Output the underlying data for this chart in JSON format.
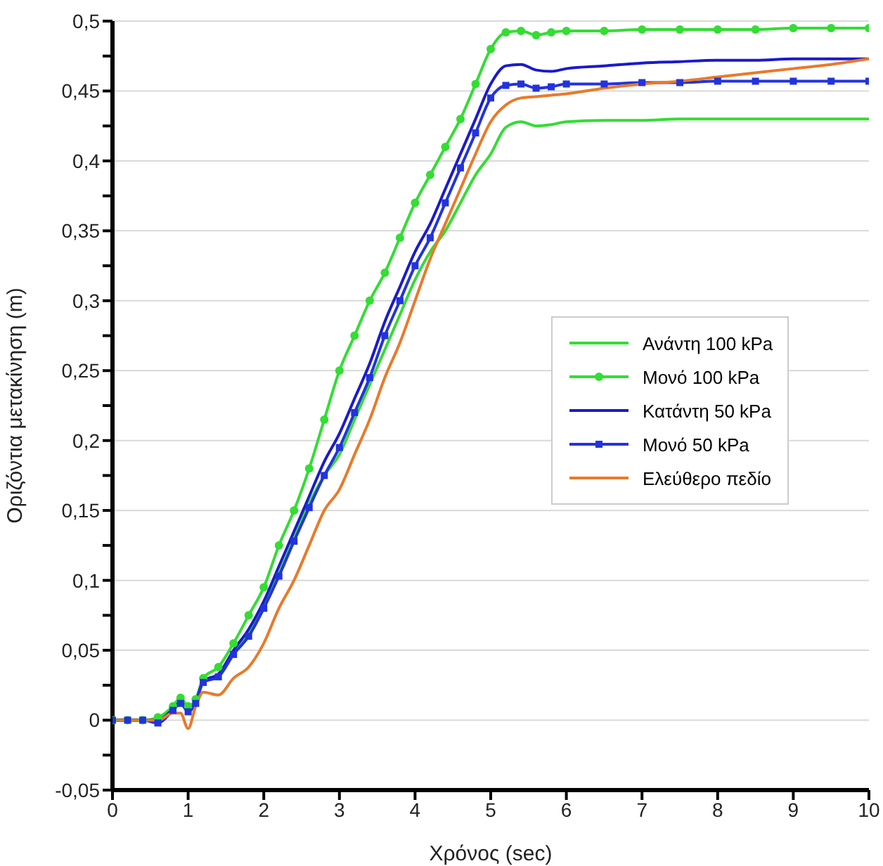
{
  "chart_data": {
    "type": "line",
    "xlabel": "Χρόνος (sec)",
    "ylabel": "Οριζόντια μετακίνηση (m)",
    "x": [
      0,
      0.2,
      0.4,
      0.6,
      0.8,
      0.9,
      1.0,
      1.1,
      1.2,
      1.4,
      1.6,
      1.8,
      2.0,
      2.2,
      2.4,
      2.6,
      2.8,
      3.0,
      3.2,
      3.4,
      3.6,
      3.8,
      4.0,
      4.2,
      4.4,
      4.6,
      4.8,
      5.0,
      5.2,
      5.4,
      5.6,
      5.8,
      6.0,
      6.5,
      7,
      7.5,
      8,
      8.5,
      9,
      9.5,
      10
    ],
    "series": [
      {
        "name": "Ανάντη 100 kPa",
        "color": "#33dd33",
        "marker": "none",
        "values": [
          0,
          0,
          0,
          0.001,
          0.009,
          0.013,
          0.007,
          0.013,
          0.028,
          0.033,
          0.048,
          0.063,
          0.082,
          0.105,
          0.13,
          0.155,
          0.175,
          0.19,
          0.215,
          0.24,
          0.265,
          0.29,
          0.315,
          0.335,
          0.35,
          0.37,
          0.39,
          0.405,
          0.424,
          0.428,
          0.425,
          0.426,
          0.428,
          0.429,
          0.429,
          0.43,
          0.43,
          0.43,
          0.43,
          0.43,
          0.43
        ]
      },
      {
        "name": "Μονό 100 kPa",
        "color": "#33dd33",
        "marker": "circle",
        "values": [
          0,
          0,
          0,
          0.002,
          0.01,
          0.016,
          0.01,
          0.015,
          0.03,
          0.038,
          0.055,
          0.075,
          0.095,
          0.125,
          0.15,
          0.18,
          0.215,
          0.25,
          0.275,
          0.3,
          0.32,
          0.345,
          0.37,
          0.39,
          0.41,
          0.43,
          0.455,
          0.48,
          0.492,
          0.493,
          0.49,
          0.492,
          0.493,
          0.493,
          0.494,
          0.494,
          0.494,
          0.494,
          0.495,
          0.495,
          0.495
        ]
      },
      {
        "name": "Κατάντη 50 kPa",
        "color": "#1a1acc",
        "marker": "none",
        "values": [
          0,
          0,
          0,
          0,
          0.008,
          0.013,
          0.008,
          0.013,
          0.028,
          0.033,
          0.05,
          0.065,
          0.085,
          0.11,
          0.135,
          0.16,
          0.185,
          0.205,
          0.23,
          0.255,
          0.285,
          0.31,
          0.335,
          0.355,
          0.38,
          0.405,
          0.43,
          0.455,
          0.468,
          0.469,
          0.465,
          0.464,
          0.466,
          0.468,
          0.47,
          0.471,
          0.472,
          0.472,
          0.473,
          0.473,
          0.473
        ]
      },
      {
        "name": "Μονό 50 kPa",
        "color": "#2233dd",
        "marker": "square",
        "values": [
          0,
          0,
          0,
          -0.002,
          0.007,
          0.012,
          0.006,
          0.012,
          0.027,
          0.031,
          0.047,
          0.06,
          0.08,
          0.103,
          0.128,
          0.152,
          0.175,
          0.195,
          0.22,
          0.245,
          0.275,
          0.3,
          0.325,
          0.345,
          0.37,
          0.395,
          0.42,
          0.445,
          0.454,
          0.455,
          0.452,
          0.453,
          0.455,
          0.455,
          0.456,
          0.456,
          0.457,
          0.457,
          0.457,
          0.457,
          0.457
        ]
      },
      {
        "name": "Ελεύθερο πεδίο",
        "color": "#e87a2a",
        "marker": "none",
        "values": [
          0,
          0,
          0,
          0,
          0.005,
          0.005,
          -0.006,
          0.01,
          0.02,
          0.018,
          0.03,
          0.038,
          0.055,
          0.08,
          0.1,
          0.125,
          0.15,
          0.165,
          0.19,
          0.215,
          0.245,
          0.27,
          0.3,
          0.33,
          0.355,
          0.38,
          0.405,
          0.428,
          0.44,
          0.445,
          0.446,
          0.447,
          0.448,
          0.452,
          0.455,
          0.457,
          0.46,
          0.463,
          0.466,
          0.469,
          0.473
        ]
      }
    ],
    "xlim": [
      0,
      10
    ],
    "xticks": [
      0,
      1,
      2,
      3,
      4,
      5,
      6,
      7,
      8,
      9,
      10
    ],
    "ylim": [
      -0.05,
      0.5
    ],
    "yticks": [
      {
        "value": -0.05,
        "label": "-0,05"
      },
      {
        "value": -0.025,
        "label": null
      },
      {
        "value": 0,
        "label": "0"
      },
      {
        "value": 0.025,
        "label": null
      },
      {
        "value": 0.05,
        "label": "0,05"
      },
      {
        "value": 0.075,
        "label": null
      },
      {
        "value": 0.1,
        "label": "0,1"
      },
      {
        "value": 0.125,
        "label": null
      },
      {
        "value": 0.15,
        "label": "0,15"
      },
      {
        "value": 0.175,
        "label": null
      },
      {
        "value": 0.2,
        "label": "0,2"
      },
      {
        "value": 0.225,
        "label": null
      },
      {
        "value": 0.25,
        "label": "0,25"
      },
      {
        "value": 0.275,
        "label": null
      },
      {
        "value": 0.3,
        "label": "0,3"
      },
      {
        "value": 0.325,
        "label": null
      },
      {
        "value": 0.35,
        "label": "0,35"
      },
      {
        "value": 0.375,
        "label": null
      },
      {
        "value": 0.4,
        "label": "0,4"
      },
      {
        "value": 0.425,
        "label": null
      },
      {
        "value": 0.45,
        "label": "0,45"
      },
      {
        "value": 0.475,
        "label": null
      },
      {
        "value": 0.5,
        "label": "0,5"
      }
    ],
    "grid": "y",
    "legend": "right",
    "line_style": "solid"
  }
}
